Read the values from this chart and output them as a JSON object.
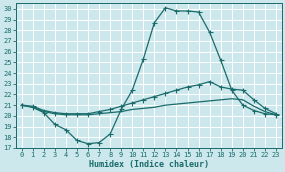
{
  "title": "",
  "xlabel": "Humidex (Indice chaleur)",
  "background_color": "#cce8ec",
  "line_color": "#1a6b6b",
  "grid_color": "#ffffff",
  "xlim": [
    -0.5,
    23.5
  ],
  "ylim": [
    17,
    30.5
  ],
  "yticks": [
    17,
    18,
    19,
    20,
    21,
    22,
    23,
    24,
    25,
    26,
    27,
    28,
    29,
    30
  ],
  "xticks": [
    0,
    1,
    2,
    3,
    4,
    5,
    6,
    7,
    8,
    9,
    10,
    11,
    12,
    13,
    14,
    15,
    16,
    17,
    18,
    19,
    20,
    21,
    22,
    23
  ],
  "series1_x": [
    0,
    1,
    2,
    3,
    4,
    5,
    6,
    7,
    8,
    9,
    10,
    11,
    12,
    13,
    14,
    15,
    16,
    17,
    18,
    19,
    20,
    21,
    22,
    23
  ],
  "series1_y": [
    21.0,
    20.8,
    20.3,
    19.2,
    18.7,
    17.7,
    17.4,
    17.5,
    18.3,
    20.6,
    22.4,
    25.3,
    28.7,
    30.1,
    29.8,
    29.8,
    29.7,
    27.8,
    25.2,
    22.4,
    21.0,
    20.5,
    20.2,
    20.1
  ],
  "series2_x": [
    0,
    1,
    2,
    3,
    4,
    5,
    6,
    7,
    8,
    9,
    10,
    11,
    12,
    13,
    14,
    15,
    16,
    17,
    18,
    19,
    20,
    21,
    22,
    23
  ],
  "series2_y": [
    21.0,
    20.9,
    20.5,
    20.3,
    20.2,
    20.2,
    20.2,
    20.4,
    20.6,
    20.9,
    21.2,
    21.5,
    21.8,
    22.1,
    22.4,
    22.7,
    22.9,
    23.2,
    22.7,
    22.5,
    22.4,
    21.5,
    20.7,
    20.2
  ],
  "series3_x": [
    0,
    1,
    2,
    3,
    4,
    5,
    6,
    7,
    8,
    9,
    10,
    11,
    12,
    13,
    14,
    15,
    16,
    17,
    18,
    19,
    20,
    21,
    22,
    23
  ],
  "series3_y": [
    21.0,
    20.8,
    20.4,
    20.2,
    20.1,
    20.1,
    20.1,
    20.2,
    20.3,
    20.4,
    20.6,
    20.7,
    20.8,
    21.0,
    21.1,
    21.2,
    21.3,
    21.4,
    21.5,
    21.6,
    21.5,
    20.9,
    20.4,
    20.1
  ],
  "marker_size": 2.0,
  "line_width": 0.9,
  "font_size_tick": 5.0,
  "font_size_label": 6.0
}
